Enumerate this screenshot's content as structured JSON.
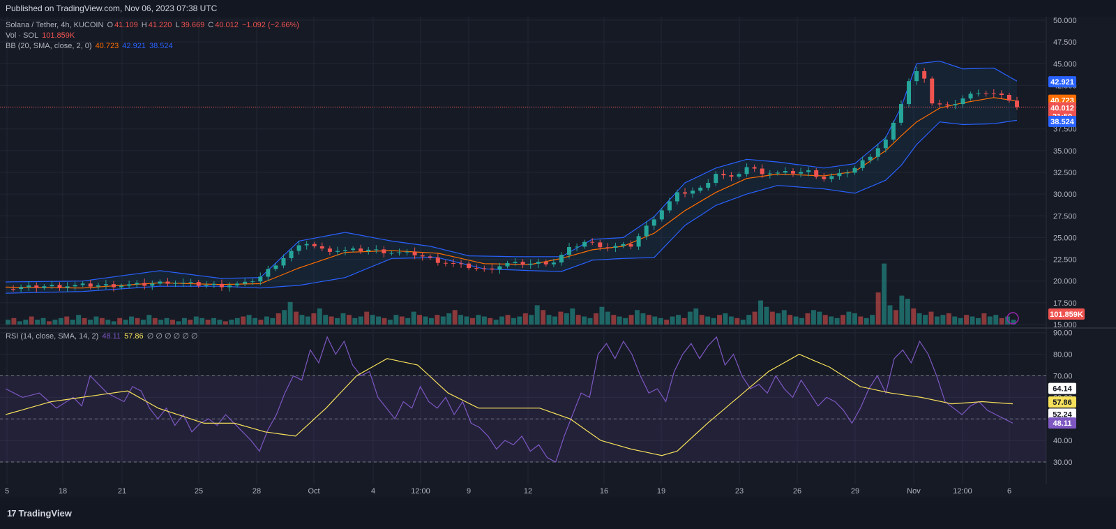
{
  "header": {
    "published": "Published on TradingView.com, Nov 06, 2023 07:38 UTC"
  },
  "legend": {
    "symbol": "Solana / Tether, 4h, KUCOIN",
    "o_label": "O",
    "o": "41.109",
    "h_label": "H",
    "h": "41.220",
    "l_label": "L",
    "l": "39.669",
    "c_label": "C",
    "c": "40.012",
    "change": "−1.092 (−2.66%)",
    "vol_label": "Vol · SOL",
    "vol": "101.859K",
    "bb_label": "BB (20, SMA, close, 2, 0)",
    "bb_basis": "40.723",
    "bb_upper": "42.921",
    "bb_lower": "38.524",
    "rsi_label": "RSI (14, close, SMA, 14, 2)",
    "rsi_value": "48.11",
    "rsi_ma": "57.86",
    "rsi_extra": "∅ ∅ ∅ ∅ ∅ ∅"
  },
  "footer": {
    "brand": "TradingView",
    "logo_mark": "17"
  },
  "colors": {
    "up": "#26a69a",
    "down": "#ef5350",
    "basis": "#ff6d00",
    "band": "#2962ff",
    "rsi": "#7e57c2",
    "rsi_ma": "#f7e15b",
    "bg": "#161a25",
    "grid": "#222634",
    "text": "#b2b5be"
  },
  "badges": {
    "upper": "42.921",
    "basis": "40.723",
    "close": "40.012",
    "countdown": "21:50",
    "lower": "38.524",
    "volume": "101.859K",
    "rsi_high": "64.14",
    "rsi_ma": "57.86",
    "rsi_low": "52.24",
    "rsi_value": "48.11"
  },
  "chart_data": {
    "type": "candlestick",
    "symbol": "Solana / Tether, 4h, KUCOIN",
    "price_axis": {
      "ticks": [
        "50.000",
        "47.500",
        "45.000",
        "42.500",
        "40.000",
        "37.500",
        "35.000",
        "32.500",
        "30.000",
        "27.500",
        "25.000",
        "22.500",
        "20.000",
        "17.500",
        "15.000"
      ],
      "ylim": [
        15,
        50
      ]
    },
    "time_axis": [
      "5",
      "18",
      "21",
      "25",
      "28",
      "Oct",
      "4",
      "12:00",
      "9",
      "12",
      "16",
      "19",
      "23",
      "26",
      "29",
      "Nov",
      "12:00",
      "6"
    ],
    "price_path": [
      [
        0,
        19.1
      ],
      [
        5,
        19.4
      ],
      [
        10,
        19.5
      ],
      [
        14,
        19.5
      ],
      [
        18,
        19.6
      ],
      [
        21,
        19.9
      ],
      [
        25,
        19.6
      ],
      [
        28,
        19.5
      ],
      [
        31,
        19.7
      ],
      [
        33,
        20.5
      ],
      [
        35,
        22.0
      ],
      [
        37,
        23.4
      ],
      [
        39,
        24.4
      ],
      [
        41,
        23.6
      ],
      [
        44,
        23.5
      ],
      [
        47,
        23.6
      ],
      [
        50,
        23.3
      ],
      [
        53,
        23.1
      ],
      [
        56,
        22.3
      ],
      [
        59,
        21.8
      ],
      [
        62,
        21.3
      ],
      [
        65,
        22.0
      ],
      [
        68,
        22.0
      ],
      [
        71,
        22.2
      ],
      [
        73,
        23.7
      ],
      [
        75,
        24.5
      ],
      [
        78,
        23.9
      ],
      [
        81,
        24.1
      ],
      [
        84,
        27.3
      ],
      [
        87,
        30.0
      ],
      [
        90,
        30.6
      ],
      [
        92,
        32.4
      ],
      [
        94,
        31.8
      ],
      [
        96,
        33.1
      ],
      [
        98,
        32.5
      ],
      [
        100,
        32.4
      ],
      [
        102,
        32.5
      ],
      [
        104,
        32.6
      ],
      [
        106,
        31.8
      ],
      [
        108,
        32.2
      ],
      [
        110,
        33.0
      ],
      [
        112,
        34.5
      ],
      [
        114,
        36.2
      ],
      [
        115,
        38.0
      ],
      [
        116,
        40.5
      ],
      [
        117,
        43.0
      ],
      [
        118,
        44.0
      ],
      [
        119,
        43.5
      ],
      [
        120,
        40.5
      ],
      [
        122,
        40.0
      ],
      [
        124,
        41.0
      ],
      [
        126,
        41.8
      ],
      [
        128,
        41.5
      ],
      [
        130,
        40.9
      ],
      [
        131,
        40.0
      ]
    ],
    "bb_upper_path": [
      [
        0,
        19.9
      ],
      [
        10,
        20.0
      ],
      [
        20,
        21.2
      ],
      [
        28,
        20.3
      ],
      [
        33,
        20.4
      ],
      [
        38,
        24.6
      ],
      [
        44,
        25.6
      ],
      [
        50,
        24.6
      ],
      [
        55,
        24.0
      ],
      [
        60,
        22.9
      ],
      [
        66,
        22.8
      ],
      [
        72,
        22.8
      ],
      [
        76,
        24.8
      ],
      [
        80,
        25.0
      ],
      [
        84,
        27.4
      ],
      [
        88,
        31.3
      ],
      [
        92,
        33.0
      ],
      [
        96,
        34.0
      ],
      [
        100,
        33.7
      ],
      [
        106,
        33.0
      ],
      [
        110,
        33.5
      ],
      [
        114,
        36.5
      ],
      [
        116,
        40.0
      ],
      [
        118,
        45.0
      ],
      [
        121,
        45.3
      ],
      [
        124,
        44.4
      ],
      [
        128,
        44.5
      ],
      [
        131,
        43.0
      ]
    ],
    "bb_basis_path": [
      [
        0,
        19.3
      ],
      [
        10,
        19.2
      ],
      [
        20,
        19.8
      ],
      [
        28,
        19.6
      ],
      [
        33,
        19.7
      ],
      [
        38,
        21.5
      ],
      [
        44,
        23.3
      ],
      [
        50,
        23.5
      ],
      [
        56,
        23.2
      ],
      [
        62,
        22.0
      ],
      [
        68,
        21.9
      ],
      [
        72,
        22.6
      ],
      [
        76,
        23.6
      ],
      [
        80,
        24.0
      ],
      [
        84,
        25.5
      ],
      [
        88,
        28.1
      ],
      [
        92,
        30.2
      ],
      [
        96,
        31.8
      ],
      [
        100,
        32.3
      ],
      [
        106,
        32.1
      ],
      [
        110,
        32.6
      ],
      [
        114,
        35.0
      ],
      [
        116,
        36.7
      ],
      [
        118,
        38.3
      ],
      [
        121,
        39.9
      ],
      [
        124,
        40.5
      ],
      [
        128,
        41.1
      ],
      [
        131,
        40.7
      ]
    ],
    "bb_lower_path": [
      [
        0,
        18.6
      ],
      [
        10,
        18.8
      ],
      [
        20,
        19.4
      ],
      [
        28,
        19.4
      ],
      [
        33,
        19.2
      ],
      [
        38,
        19.5
      ],
      [
        44,
        20.4
      ],
      [
        50,
        22.6
      ],
      [
        56,
        22.7
      ],
      [
        62,
        21.4
      ],
      [
        68,
        21.2
      ],
      [
        72,
        21.1
      ],
      [
        76,
        22.4
      ],
      [
        80,
        22.6
      ],
      [
        84,
        22.7
      ],
      [
        88,
        26.4
      ],
      [
        92,
        28.7
      ],
      [
        96,
        30.0
      ],
      [
        100,
        31.0
      ],
      [
        106,
        30.6
      ],
      [
        110,
        30.1
      ],
      [
        114,
        31.6
      ],
      [
        116,
        33.3
      ],
      [
        118,
        35.7
      ],
      [
        121,
        38.3
      ],
      [
        124,
        38.0
      ],
      [
        128,
        38.1
      ],
      [
        131,
        38.5
      ]
    ],
    "volume_bars": [
      3,
      4,
      2,
      3,
      5,
      3,
      4,
      2,
      3,
      4,
      5,
      3,
      6,
      4,
      3,
      5,
      4,
      3,
      2,
      4,
      3,
      5,
      4,
      3,
      6,
      4,
      3,
      4,
      3,
      2,
      4,
      3,
      5,
      4,
      3,
      4,
      3,
      2,
      3,
      4,
      5,
      6,
      4,
      3,
      5,
      4,
      7,
      9,
      14,
      8,
      6,
      5,
      7,
      10,
      6,
      5,
      4,
      7,
      6,
      4,
      5,
      8,
      6,
      5,
      4,
      3,
      6,
      5,
      4,
      8,
      6,
      5,
      4,
      6,
      5,
      7,
      9,
      6,
      5,
      4,
      6,
      5,
      4,
      3,
      5,
      6,
      4,
      5,
      7,
      6,
      12,
      9,
      6,
      5,
      8,
      7,
      10,
      6,
      5,
      4,
      7,
      11,
      8,
      6,
      5,
      4,
      6,
      9,
      7,
      6,
      5,
      4,
      3,
      5,
      6,
      4,
      8,
      10,
      6,
      5,
      4,
      6,
      7,
      5,
      4,
      3,
      6,
      8,
      15,
      11,
      8,
      7,
      9,
      6,
      5,
      4,
      7,
      9,
      8,
      6,
      5,
      4,
      6,
      8,
      7,
      5,
      4,
      6,
      20,
      38,
      12,
      9,
      18,
      16,
      10,
      7,
      6,
      8,
      5,
      6,
      7,
      5,
      4,
      6,
      5,
      4,
      7,
      5,
      6,
      4,
      5,
      3
    ],
    "rsi_axis": {
      "ticks": [
        "90.00",
        "80.00",
        "70.00",
        "60.00",
        "50.00",
        "40.00",
        "30.00"
      ],
      "ylim": [
        25,
        93
      ],
      "overbought": 70,
      "oversold": 30
    },
    "rsi_path": [
      [
        0,
        64
      ],
      [
        2,
        60
      ],
      [
        4,
        62
      ],
      [
        6,
        55
      ],
      [
        8,
        60
      ],
      [
        9,
        56
      ],
      [
        10,
        70
      ],
      [
        12,
        62
      ],
      [
        14,
        58
      ],
      [
        15,
        65
      ],
      [
        16,
        63
      ],
      [
        17,
        55
      ],
      [
        18,
        50
      ],
      [
        19,
        55
      ],
      [
        20,
        47
      ],
      [
        21,
        52
      ],
      [
        22,
        44
      ],
      [
        23,
        48
      ],
      [
        24,
        50
      ],
      [
        25,
        47
      ],
      [
        26,
        52
      ],
      [
        27,
        48
      ],
      [
        28,
        44
      ],
      [
        29,
        40
      ],
      [
        30,
        35
      ],
      [
        31,
        45
      ],
      [
        32,
        52
      ],
      [
        33,
        62
      ],
      [
        34,
        70
      ],
      [
        35,
        68
      ],
      [
        36,
        82
      ],
      [
        37,
        76
      ],
      [
        38,
        88
      ],
      [
        39,
        80
      ],
      [
        40,
        86
      ],
      [
        41,
        75
      ],
      [
        42,
        70
      ],
      [
        43,
        72
      ],
      [
        44,
        60
      ],
      [
        45,
        55
      ],
      [
        46,
        50
      ],
      [
        47,
        58
      ],
      [
        48,
        55
      ],
      [
        49,
        65
      ],
      [
        50,
        58
      ],
      [
        51,
        55
      ],
      [
        52,
        60
      ],
      [
        53,
        52
      ],
      [
        54,
        58
      ],
      [
        55,
        48
      ],
      [
        56,
        46
      ],
      [
        57,
        42
      ],
      [
        58,
        36
      ],
      [
        59,
        40
      ],
      [
        60,
        38
      ],
      [
        61,
        42
      ],
      [
        62,
        35
      ],
      [
        63,
        38
      ],
      [
        64,
        32
      ],
      [
        65,
        30
      ],
      [
        66,
        42
      ],
      [
        67,
        52
      ],
      [
        68,
        62
      ],
      [
        69,
        60
      ],
      [
        70,
        80
      ],
      [
        71,
        85
      ],
      [
        72,
        78
      ],
      [
        73,
        86
      ],
      [
        74,
        80
      ],
      [
        75,
        70
      ],
      [
        76,
        62
      ],
      [
        77,
        64
      ],
      [
        78,
        58
      ],
      [
        79,
        72
      ],
      [
        80,
        80
      ],
      [
        81,
        85
      ],
      [
        82,
        78
      ],
      [
        83,
        84
      ],
      [
        84,
        88
      ],
      [
        85,
        75
      ],
      [
        86,
        80
      ],
      [
        87,
        70
      ],
      [
        88,
        64
      ],
      [
        89,
        66
      ],
      [
        90,
        62
      ],
      [
        91,
        70
      ],
      [
        92,
        64
      ],
      [
        93,
        60
      ],
      [
        94,
        68
      ],
      [
        95,
        62
      ],
      [
        96,
        56
      ],
      [
        97,
        60
      ],
      [
        98,
        58
      ],
      [
        99,
        54
      ],
      [
        100,
        48
      ],
      [
        101,
        55
      ],
      [
        102,
        64
      ],
      [
        103,
        70
      ],
      [
        104,
        62
      ],
      [
        105,
        78
      ],
      [
        106,
        82
      ],
      [
        107,
        76
      ],
      [
        108,
        86
      ],
      [
        109,
        80
      ],
      [
        110,
        70
      ],
      [
        111,
        58
      ],
      [
        112,
        55
      ],
      [
        113,
        52
      ],
      [
        114,
        56
      ],
      [
        115,
        58
      ],
      [
        116,
        54
      ],
      [
        117,
        52
      ],
      [
        118,
        50
      ],
      [
        119,
        48
      ]
    ],
    "rsi_ma_path": [
      [
        0,
        52
      ],
      [
        6,
        58
      ],
      [
        10,
        60
      ],
      [
        16,
        63
      ],
      [
        20,
        55
      ],
      [
        26,
        48
      ],
      [
        30,
        48
      ],
      [
        34,
        44
      ],
      [
        38,
        42
      ],
      [
        42,
        55
      ],
      [
        46,
        70
      ],
      [
        50,
        78
      ],
      [
        54,
        75
      ],
      [
        58,
        62
      ],
      [
        62,
        55
      ],
      [
        66,
        55
      ],
      [
        70,
        55
      ],
      [
        74,
        50
      ],
      [
        78,
        40
      ],
      [
        82,
        36
      ],
      [
        86,
        33
      ],
      [
        88,
        35
      ],
      [
        92,
        48
      ],
      [
        96,
        60
      ],
      [
        100,
        72
      ],
      [
        104,
        80
      ],
      [
        108,
        74
      ],
      [
        112,
        65
      ],
      [
        116,
        62
      ],
      [
        120,
        60
      ],
      [
        124,
        57
      ],
      [
        128,
        58
      ],
      [
        132,
        57
      ]
    ]
  }
}
